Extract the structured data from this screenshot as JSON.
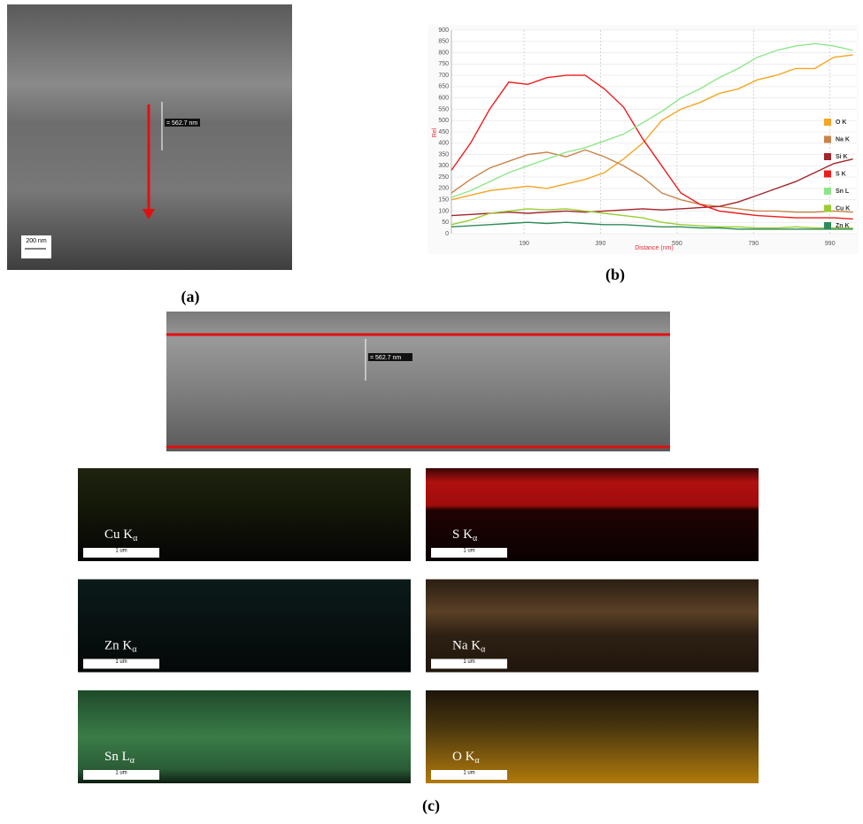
{
  "panel_a": {
    "measurement": "= 562.7 nm",
    "scale": "200 nm",
    "caption": "(a)"
  },
  "panel_b": {
    "caption": "(b)"
  },
  "chart_data": {
    "type": "line",
    "x_label": "Distance (nm)",
    "y_label": "Rel",
    "x": [
      0,
      50,
      100,
      150,
      200,
      250,
      300,
      350,
      400,
      450,
      500,
      550,
      600,
      650,
      700,
      750,
      800,
      850,
      900,
      950,
      1000,
      1050
    ],
    "xlim": [
      0,
      1060
    ],
    "ylim": [
      0,
      900
    ],
    "xticks": [
      190,
      390,
      590,
      790,
      990
    ],
    "yticks": [
      0,
      50,
      100,
      150,
      200,
      250,
      300,
      350,
      400,
      450,
      500,
      550,
      600,
      650,
      700,
      750,
      800,
      850,
      900
    ],
    "grid": true,
    "legend": "right",
    "series": [
      {
        "name": "O K",
        "color": "#f5a623",
        "values": [
          150,
          170,
          190,
          200,
          210,
          200,
          220,
          240,
          270,
          330,
          400,
          500,
          550,
          580,
          620,
          640,
          680,
          700,
          730,
          730,
          780,
          790
        ]
      },
      {
        "name": "Na K",
        "color": "#c8844a",
        "values": [
          180,
          240,
          290,
          320,
          350,
          360,
          340,
          370,
          340,
          300,
          250,
          180,
          150,
          130,
          120,
          110,
          100,
          100,
          95,
          95,
          100,
          95
        ]
      },
      {
        "name": "Si K",
        "color": "#a3242a",
        "values": [
          80,
          85,
          90,
          95,
          90,
          95,
          100,
          95,
          100,
          105,
          110,
          105,
          110,
          115,
          120,
          140,
          170,
          200,
          230,
          270,
          310,
          330
        ]
      },
      {
        "name": "S K",
        "color": "#ee1c1c",
        "values": [
          280,
          400,
          550,
          670,
          660,
          690,
          700,
          700,
          640,
          560,
          420,
          300,
          180,
          130,
          100,
          90,
          80,
          75,
          70,
          70,
          70,
          65
        ]
      },
      {
        "name": "Sn L",
        "color": "#8ee68a",
        "values": [
          160,
          190,
          230,
          270,
          300,
          330,
          360,
          380,
          410,
          440,
          490,
          540,
          600,
          640,
          690,
          730,
          780,
          810,
          830,
          840,
          830,
          810
        ]
      },
      {
        "name": "Cu K",
        "color": "#9acd32",
        "values": [
          40,
          60,
          90,
          100,
          110,
          105,
          110,
          100,
          90,
          80,
          70,
          50,
          40,
          35,
          30,
          30,
          25,
          25,
          30,
          25,
          25,
          25
        ]
      },
      {
        "name": "Zn K",
        "color": "#2e8b57",
        "values": [
          30,
          35,
          40,
          45,
          50,
          45,
          50,
          45,
          40,
          40,
          35,
          30,
          30,
          25,
          25,
          20,
          20,
          20,
          20,
          20,
          20,
          20
        ]
      }
    ]
  },
  "panel_c": {
    "measurement": "= 562.7 nm",
    "caption": "(c)",
    "maps": [
      {
        "element": "Cu K",
        "sub": "α",
        "scale": "1 um"
      },
      {
        "element": "S K",
        "sub": "α",
        "scale": "1 um"
      },
      {
        "element": "Zn K",
        "sub": "α",
        "scale": "1 um"
      },
      {
        "element": "Na K",
        "sub": "α",
        "scale": "1 um"
      },
      {
        "element": "Sn L",
        "sub": "α",
        "scale": "1 um"
      },
      {
        "element": "O K",
        "sub": "α",
        "scale": "1 um"
      }
    ]
  }
}
